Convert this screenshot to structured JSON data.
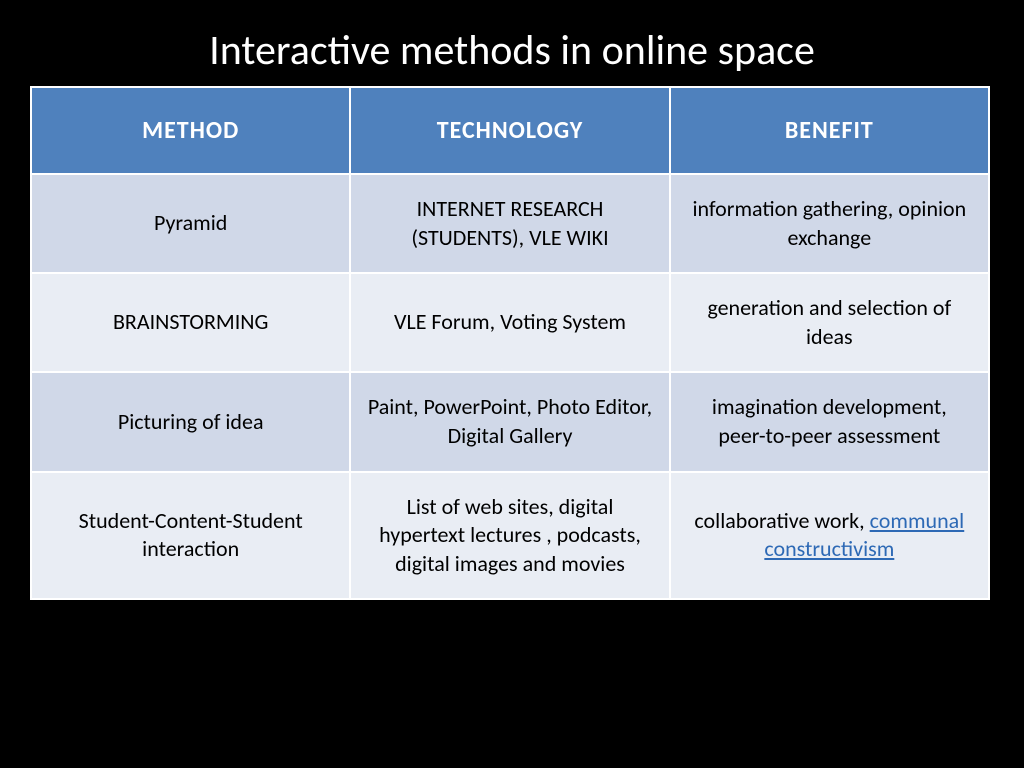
{
  "slide": {
    "title": "Interactive methods in online space",
    "background_color": "#000000",
    "title_color": "#ffffff",
    "title_fontsize": 42
  },
  "table": {
    "type": "table",
    "header_bg": "#4f81bd",
    "header_color": "#ffffff",
    "row_odd_bg": "#d0d8e8",
    "row_even_bg": "#e9edf4",
    "border_color": "#ffffff",
    "header_fontsize": 24,
    "cell_fontsize": 22,
    "link_color": "#2d69b5",
    "columns": [
      "METHOD",
      "TECHNOLOGY",
      "BENEFIT"
    ],
    "rows": [
      {
        "method": "Pyramid",
        "technology": "INTERNET RESEARCH (STUDENTS), VLE WIKI",
        "benefit": "information gathering, opinion exchange"
      },
      {
        "method": "BRAINSTORMING",
        "technology": "VLE Forum, Voting System",
        "benefit": "generation and selection of ideas"
      },
      {
        "method": "Picturing of idea",
        "technology": "Paint, PowerPoint, Photo Editor, Digital Gallery",
        "benefit": "imagination development, peer-to-peer assessment"
      },
      {
        "method": "Student-Content-Student interaction",
        "technology": "List of web sites, digital hypertext lectures , podcasts, digital images and movies",
        "benefit_prefix": "collaborative work, ",
        "benefit_link": "communal constructivism"
      }
    ]
  }
}
